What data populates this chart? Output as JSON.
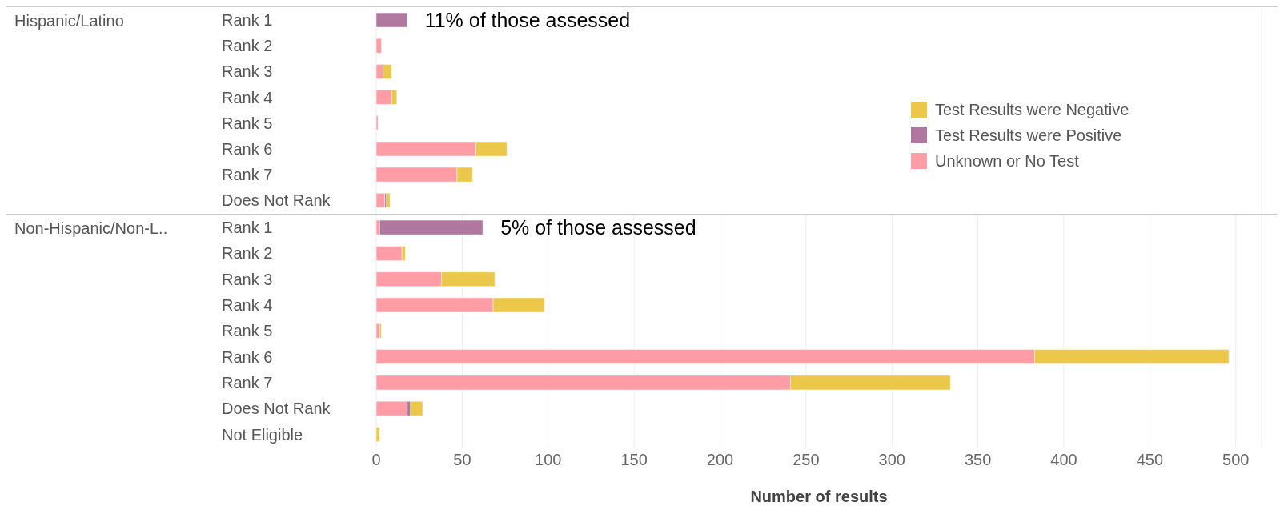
{
  "chart_data": [
    {
      "type": "bar",
      "orientation": "horizontal",
      "stacked": true,
      "ylabel": "Hispanic/Latino",
      "categories": [
        "Rank 1",
        "Rank 2",
        "Rank 3",
        "Rank 4",
        "Rank 5",
        "Rank 6",
        "Rank 7",
        "Does Not Rank"
      ],
      "series": [
        {
          "name": "Unknown or No Test",
          "color": "#ff9da7",
          "values": [
            null,
            3,
            4,
            9,
            1,
            58,
            47,
            5
          ]
        },
        {
          "name": "Test Results were Positive",
          "color": "#b0779f",
          "values": [
            18,
            null,
            null,
            null,
            null,
            null,
            null,
            1
          ]
        },
        {
          "name": "Test Results were Negative",
          "color": "#ebc84a",
          "values": [
            null,
            null,
            5,
            3,
            null,
            18,
            9,
            2
          ]
        }
      ],
      "xlim": [
        0,
        515
      ],
      "xticks": [
        0,
        50,
        100,
        150,
        200,
        250,
        300,
        350,
        400,
        450,
        500
      ],
      "grid": "x",
      "tick_labels": "y",
      "legend": "right",
      "annotations": [
        {
          "text": "11% of those assessed",
          "x": 18,
          "y": "Rank 1"
        }
      ]
    },
    {
      "type": "bar",
      "orientation": "horizontal",
      "stacked": true,
      "ylabel": "Non-Hispanic/Non-L..",
      "xlabel": "Number of results",
      "categories": [
        "Rank 1",
        "Rank 2",
        "Rank 3",
        "Rank 4",
        "Rank 5",
        "Rank 6",
        "Rank 7",
        "Does Not Rank",
        "Not Eligible"
      ],
      "series": [
        {
          "color": "#ff9da7",
          "values": [
            2,
            15,
            38,
            68,
            2,
            383,
            241,
            18,
            null
          ]
        },
        {
          "color": "#b0779f",
          "values": [
            60,
            null,
            null,
            null,
            null,
            null,
            null,
            2,
            null
          ]
        },
        {
          "color": "#ebc84a",
          "values": [
            null,
            2,
            31,
            30,
            1,
            113,
            93,
            7,
            2
          ]
        }
      ],
      "xlim": [
        0,
        515
      ],
      "xticks": [
        0,
        50,
        100,
        150,
        200,
        250,
        300,
        350,
        400,
        450,
        500
      ],
      "grid": "x",
      "annotations": [
        {
          "text": "5% of those assessed",
          "x": 62,
          "y": "Rank 1"
        }
      ]
    }
  ]
}
